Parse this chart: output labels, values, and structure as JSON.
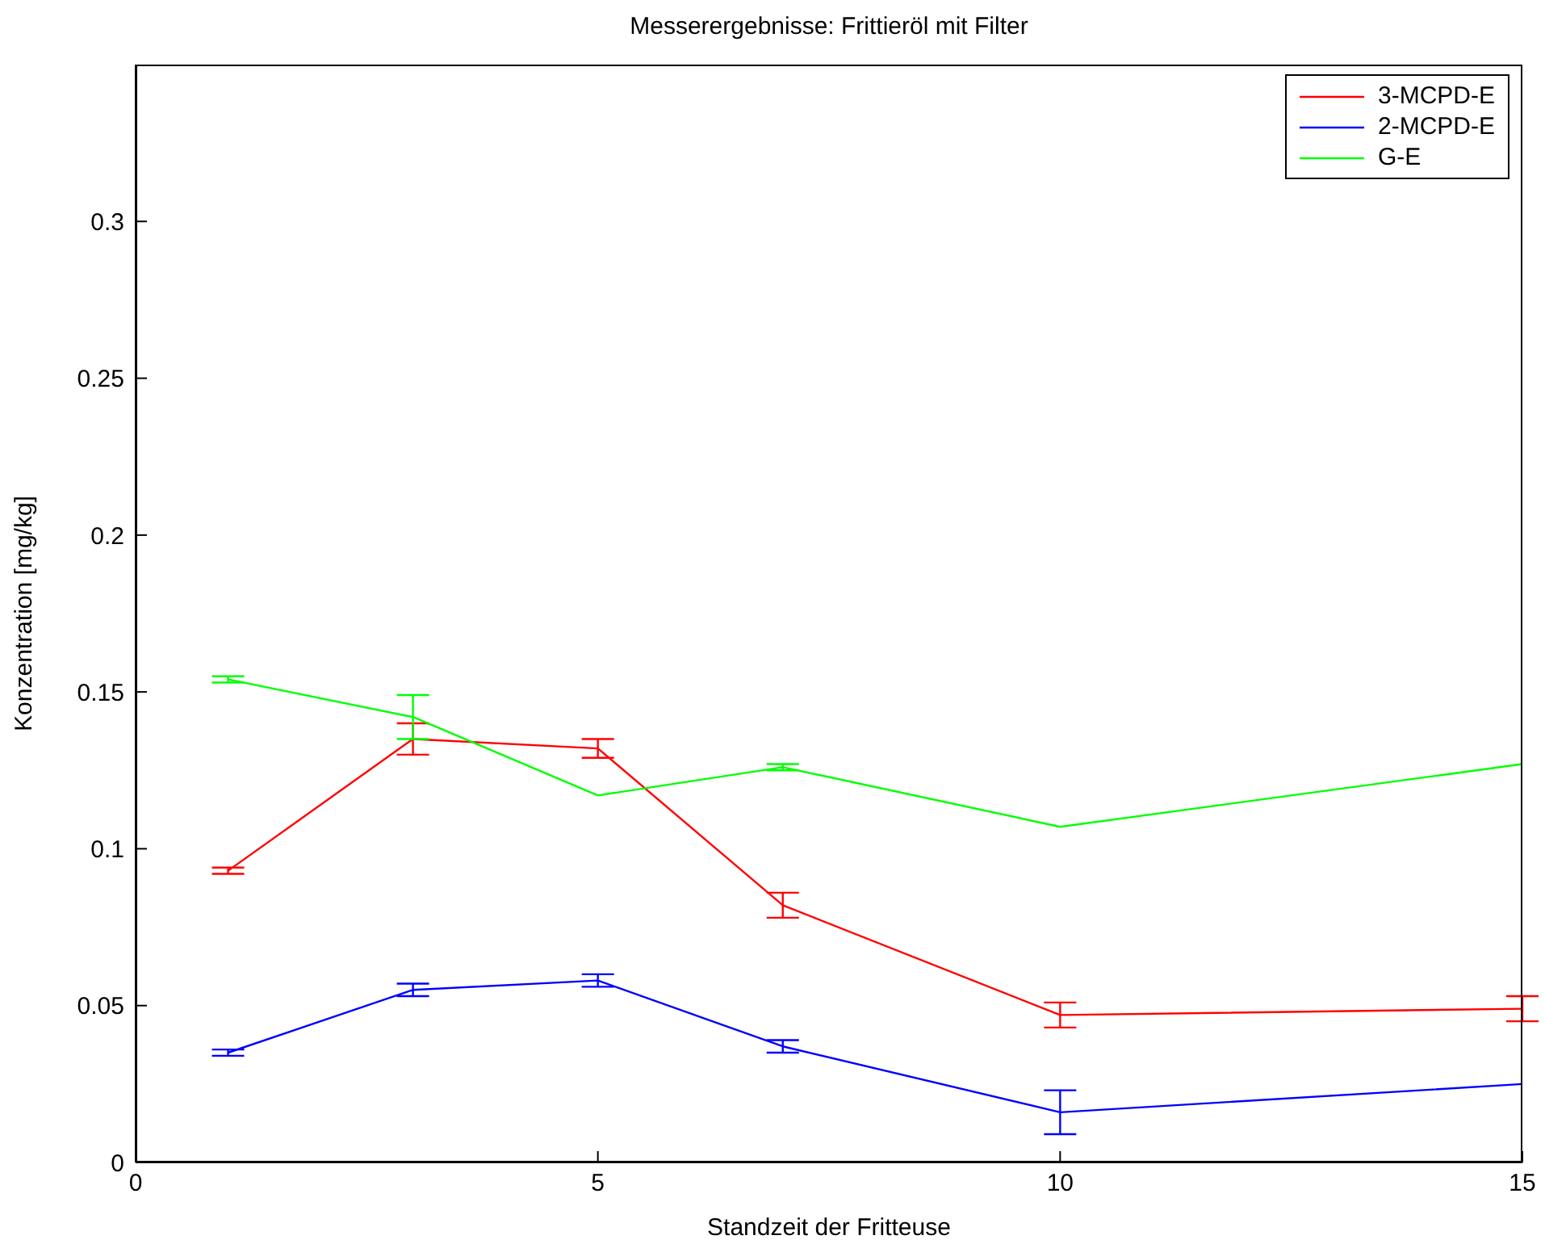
{
  "chart_data": {
    "type": "line",
    "title": "Messerergebnisse: Frittieröl mit Filter",
    "xlabel": "Standzeit der Fritteuse",
    "ylabel": "Konzentration [mg/kg]",
    "x": [
      1,
      3,
      5,
      7,
      10,
      15
    ],
    "xlim": [
      0,
      15
    ],
    "xticks": [
      0,
      5,
      10,
      15
    ],
    "ylim": [
      0,
      0.35
    ],
    "yticks": [
      0,
      0.05,
      0.1,
      0.15,
      0.2,
      0.25,
      0.3
    ],
    "legend": "top right",
    "marker": "none",
    "line_style": "solid",
    "series": [
      {
        "name": "3-MCPD-E",
        "color": "#ff0000",
        "values": [
          0.093,
          0.135,
          0.132,
          0.082,
          0.047,
          0.049
        ],
        "errors": [
          0.001,
          0.005,
          0.003,
          0.004,
          0.004,
          0.004
        ]
      },
      {
        "name": "2-MCPD-E",
        "color": "#0000ff",
        "values": [
          0.035,
          0.055,
          0.058,
          0.037,
          0.016,
          0.025
        ],
        "errors": [
          0.001,
          0.002,
          0.002,
          0.002,
          0.007,
          null
        ]
      },
      {
        "name": "G-E",
        "color": "#00ff00",
        "values": [
          0.154,
          0.142,
          0.117,
          0.126,
          0.107,
          0.127
        ],
        "errors": [
          0.001,
          0.007,
          null,
          0.001,
          null,
          null
        ]
      }
    ]
  }
}
